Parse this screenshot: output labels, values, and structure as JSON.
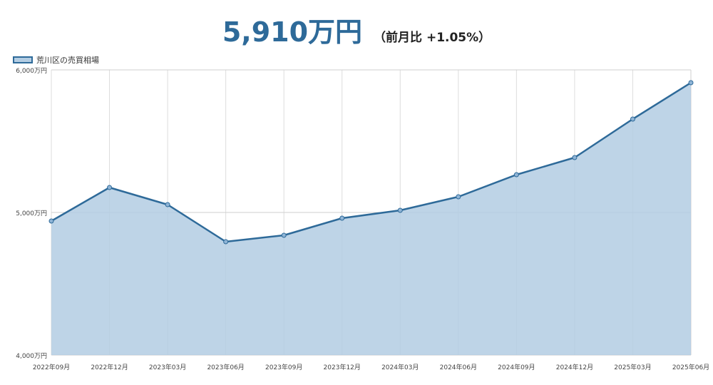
{
  "headline": {
    "value": "5,910万円",
    "change": "（前月比 +1.05%）"
  },
  "colors": {
    "line": "#2e6a99",
    "fill": "#b3cde3",
    "grid": "#dddddd",
    "headline": "#2e6a99"
  },
  "chart_data": {
    "type": "area",
    "categories": [
      "2022年09月",
      "2022年12月",
      "2023年03月",
      "2023年06月",
      "2023年09月",
      "2023年12月",
      "2024年03月",
      "2024年06月",
      "2024年09月",
      "2024年12月",
      "2025年03月",
      "2025年06月"
    ],
    "series": [
      {
        "name": "荒川区の売買相場",
        "values": [
          4940,
          5175,
          5055,
          4795,
          4840,
          4960,
          5015,
          5110,
          5265,
          5385,
          5655,
          5910
        ]
      }
    ],
    "ylim": [
      4000,
      6000
    ],
    "yticks": [
      4000,
      5000,
      6000
    ],
    "ytick_labels": [
      "4,000万円",
      "5,000万円",
      "6,000万円"
    ],
    "grid": true,
    "legend": "top-left"
  }
}
